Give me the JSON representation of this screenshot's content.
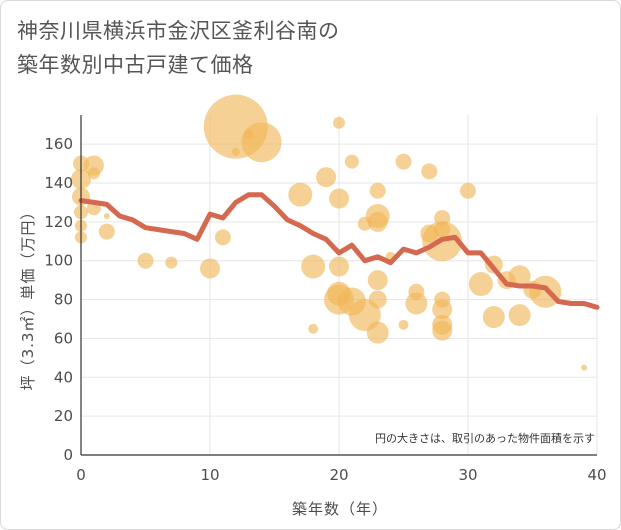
{
  "title_lines": [
    "神奈川県横浜市金沢区釜利谷南の",
    "築年数別中古戸建て価格"
  ],
  "colors": {
    "bubble": "#f0b455",
    "line": "#d4694f",
    "grid": "#e6e6e6",
    "axis": "#333333"
  },
  "chart_data": {
    "type": "scatter",
    "xlabel": "築年数（年）",
    "ylabel": "坪（3.3㎡）単価（万円）",
    "xlim": [
      0,
      40
    ],
    "ylim": [
      0,
      175
    ],
    "xticks": [
      "0",
      "10",
      "20",
      "30",
      "40"
    ],
    "yticks": [
      "0",
      "20",
      "40",
      "60",
      "80",
      "100",
      "120",
      "140",
      "160"
    ],
    "note": "円の大きさは、取引のあった物件面積を示す",
    "scatter_points": [
      {
        "x": 0,
        "y": 150,
        "s": 8
      },
      {
        "x": 0,
        "y": 142,
        "s": 10
      },
      {
        "x": 0,
        "y": 133,
        "s": 9
      },
      {
        "x": 0,
        "y": 125,
        "s": 7
      },
      {
        "x": 0,
        "y": 118,
        "s": 6
      },
      {
        "x": 0,
        "y": 112,
        "s": 6
      },
      {
        "x": 1,
        "y": 149,
        "s": 10
      },
      {
        "x": 1,
        "y": 145,
        "s": 6
      },
      {
        "x": 1,
        "y": 127,
        "s": 7
      },
      {
        "x": 2,
        "y": 123,
        "s": 3
      },
      {
        "x": 2,
        "y": 115,
        "s": 8
      },
      {
        "x": 5,
        "y": 100,
        "s": 8
      },
      {
        "x": 7,
        "y": 99,
        "s": 6
      },
      {
        "x": 10,
        "y": 96,
        "s": 10
      },
      {
        "x": 11,
        "y": 112,
        "s": 8
      },
      {
        "x": 12,
        "y": 169,
        "s": 32
      },
      {
        "x": 12,
        "y": 156,
        "s": 4
      },
      {
        "x": 13,
        "y": 165,
        "s": 5
      },
      {
        "x": 14,
        "y": 161,
        "s": 20
      },
      {
        "x": 17,
        "y": 134,
        "s": 12
      },
      {
        "x": 18,
        "y": 97,
        "s": 12
      },
      {
        "x": 18,
        "y": 65,
        "s": 5
      },
      {
        "x": 19,
        "y": 143,
        "s": 10
      },
      {
        "x": 20,
        "y": 171,
        "s": 6
      },
      {
        "x": 20,
        "y": 132,
        "s": 10
      },
      {
        "x": 20,
        "y": 97,
        "s": 10
      },
      {
        "x": 20,
        "y": 83,
        "s": 12
      },
      {
        "x": 20,
        "y": 80,
        "s": 15
      },
      {
        "x": 21,
        "y": 151,
        "s": 7
      },
      {
        "x": 21,
        "y": 79,
        "s": 14
      },
      {
        "x": 22,
        "y": 119,
        "s": 7
      },
      {
        "x": 22,
        "y": 72,
        "s": 16
      },
      {
        "x": 23,
        "y": 136,
        "s": 8
      },
      {
        "x": 23,
        "y": 123,
        "s": 12
      },
      {
        "x": 23,
        "y": 120,
        "s": 10
      },
      {
        "x": 23,
        "y": 90,
        "s": 10
      },
      {
        "x": 23,
        "y": 80,
        "s": 9
      },
      {
        "x": 23,
        "y": 63,
        "s": 11
      },
      {
        "x": 24,
        "y": 102,
        "s": 5
      },
      {
        "x": 25,
        "y": 151,
        "s": 8
      },
      {
        "x": 25,
        "y": 67,
        "s": 5
      },
      {
        "x": 26,
        "y": 84,
        "s": 8
      },
      {
        "x": 26,
        "y": 78,
        "s": 11
      },
      {
        "x": 27,
        "y": 146,
        "s": 8
      },
      {
        "x": 27,
        "y": 114,
        "s": 9
      },
      {
        "x": 28,
        "y": 122,
        "s": 8
      },
      {
        "x": 28,
        "y": 116,
        "s": 8
      },
      {
        "x": 28,
        "y": 110,
        "s": 20
      },
      {
        "x": 28,
        "y": 80,
        "s": 8
      },
      {
        "x": 28,
        "y": 75,
        "s": 10
      },
      {
        "x": 28,
        "y": 67,
        "s": 10
      },
      {
        "x": 28,
        "y": 64,
        "s": 10
      },
      {
        "x": 30,
        "y": 136,
        "s": 8
      },
      {
        "x": 31,
        "y": 88,
        "s": 12
      },
      {
        "x": 32,
        "y": 98,
        "s": 9
      },
      {
        "x": 32,
        "y": 71,
        "s": 11
      },
      {
        "x": 33,
        "y": 90,
        "s": 9
      },
      {
        "x": 34,
        "y": 92,
        "s": 11
      },
      {
        "x": 34,
        "y": 72,
        "s": 11
      },
      {
        "x": 35,
        "y": 85,
        "s": 9
      },
      {
        "x": 36,
        "y": 84,
        "s": 16
      },
      {
        "x": 39,
        "y": 45,
        "s": 3
      }
    ],
    "trend_line": {
      "x": [
        0,
        1,
        2,
        3,
        4,
        5,
        6,
        7,
        8,
        9,
        10,
        11,
        12,
        13,
        14,
        15,
        16,
        17,
        18,
        19,
        20,
        21,
        22,
        23,
        24,
        25,
        26,
        27,
        28,
        29,
        30,
        31,
        32,
        33,
        34,
        35,
        36,
        37,
        38,
        39,
        40
      ],
      "y": [
        131,
        130,
        129,
        123,
        121,
        117,
        116,
        115,
        114,
        111,
        124,
        122,
        130,
        134,
        134,
        128,
        121,
        118,
        114,
        111,
        104,
        108,
        100,
        102,
        99,
        106,
        104,
        107,
        111,
        112,
        104,
        104,
        96,
        88,
        87,
        87,
        86,
        79,
        78,
        78,
        76
      ]
    }
  }
}
